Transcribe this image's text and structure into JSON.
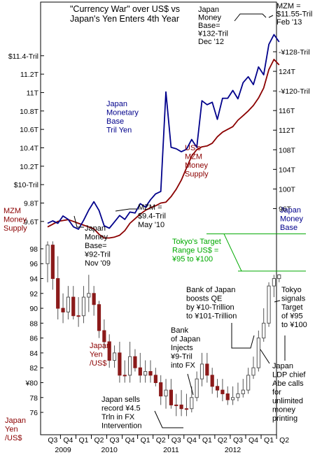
{
  "chart_data": [
    {
      "type": "line",
      "title": "\"Currency War\" over US$ vs Japan's Yen Enters 4th Year",
      "title_lines": [
        "\"Currency War\" over US$ vs",
        "Japan's Yen Enters 4th Year"
      ],
      "x_unit": "month index, 0 = Jul 2009 (Q3 2009) ... 45 = Apr 2013",
      "left_axis": {
        "label": "MZM Money Supply",
        "label_lines": [
          "MZM",
          "Money",
          "Supply"
        ],
        "unit": "US$ Trillion",
        "ylim": [
          9.5,
          11.55
        ],
        "ticks": [
          {
            "v": 11.4,
            "t": "$11.4-Tril"
          },
          {
            "v": 11.2,
            "t": "11.2T"
          },
          {
            "v": 11.0,
            "t": "11T"
          },
          {
            "v": 10.8,
            "t": "10.8T"
          },
          {
            "v": 10.6,
            "t": "10.6T"
          },
          {
            "v": 10.4,
            "t": "10.4T"
          },
          {
            "v": 10.2,
            "t": "10.2T"
          },
          {
            "v": 10.0,
            "t": "$10-Tril"
          },
          {
            "v": 9.8,
            "t": "9.8T"
          },
          {
            "v": 9.6,
            "t": "9.6T"
          }
        ]
      },
      "right_axis": {
        "label": "Japan Money Base",
        "label_lines": [
          "Japan",
          "Money",
          "Base"
        ],
        "unit": "Yen Trillion",
        "ylim": [
          91.5,
          130.0
        ],
        "ticks": [
          {
            "v": 128,
            "t": "-¥128-Tril"
          },
          {
            "v": 124,
            "t": "124T"
          },
          {
            "v": 120,
            "t": "-¥120-Tril"
          },
          {
            "v": 116,
            "t": "116T"
          },
          {
            "v": 112,
            "t": "112T"
          },
          {
            "v": 108,
            "t": "108T"
          },
          {
            "v": 104,
            "t": "104T"
          },
          {
            "v": 100,
            "t": "100T"
          },
          {
            "v": 96,
            "t": "96T"
          }
        ]
      },
      "series": [
        {
          "name": "US's MZM Money Supply",
          "axis": "left",
          "color": "#8b0000",
          "x": [
            0,
            1,
            2,
            3,
            4,
            5,
            6,
            7,
            8,
            9,
            10,
            11,
            12,
            13,
            14,
            15,
            16,
            17,
            18,
            19,
            20,
            21,
            22,
            23,
            24,
            25,
            26,
            27,
            28,
            29,
            30,
            31,
            32,
            33,
            34,
            35,
            36,
            37,
            38,
            39,
            40,
            41,
            42,
            43,
            44,
            45
          ],
          "values": [
            9.54,
            9.57,
            9.6,
            9.61,
            9.62,
            9.6,
            9.58,
            9.56,
            9.54,
            9.52,
            9.46,
            9.42,
            9.42,
            9.43,
            9.45,
            9.5,
            9.58,
            9.63,
            9.68,
            9.72,
            9.75,
            9.77,
            9.8,
            9.81,
            9.87,
            9.95,
            10.05,
            10.18,
            10.31,
            10.38,
            10.41,
            10.42,
            10.45,
            10.52,
            10.57,
            10.6,
            10.63,
            10.7,
            10.75,
            10.8,
            10.86,
            10.94,
            11.05,
            11.25,
            11.36,
            11.3
          ]
        },
        {
          "name": "Japan Monetary Base Tril Yen",
          "axis": "right",
          "color": "#00008b",
          "x": [
            0,
            1,
            2,
            3,
            4,
            5,
            6,
            7,
            8,
            9,
            10,
            11,
            12,
            13,
            14,
            15,
            16,
            17,
            18,
            19,
            20,
            21,
            22,
            23,
            24,
            25,
            26,
            27,
            28,
            29,
            30,
            31,
            32,
            33,
            34,
            35,
            36,
            37,
            38,
            39,
            40,
            41,
            42,
            43,
            44,
            45
          ],
          "values": [
            93.0,
            93.5,
            93.0,
            94.5,
            93.8,
            92.3,
            91.8,
            93.6,
            95.7,
            97.4,
            95.6,
            92.5,
            92.0,
            93.3,
            94.6,
            93.8,
            95.3,
            95.1,
            97.0,
            96.3,
            97.8,
            99.0,
            99.5,
            119.8,
            108.5,
            108.2,
            107.6,
            108.1,
            110.1,
            108.5,
            118.0,
            117.2,
            117.7,
            114.2,
            118.5,
            118.5,
            120.1,
            118.4,
            121.7,
            122.9,
            121.3,
            124.9,
            123.3,
            129.5,
            131.5,
            130.0
          ]
        }
      ],
      "annotations": [
        {
          "text": "Japan Monetary Base Tril Yen",
          "lines": [
            "Japan",
            "Monetary",
            "Base",
            "Tril Yen"
          ],
          "color": "#00008b"
        },
        {
          "text": "US's MZM Money Supply",
          "lines": [
            "US's",
            "MZM",
            "Money",
            "Supply"
          ],
          "color": "#8b0000"
        },
        {
          "text": "Japan Money Base= ¥132-Tril Dec '12",
          "lines": [
            "Japan",
            "Money",
            "Base=",
            "¥132-Tril",
            "Dec '12"
          ],
          "color": "#000000"
        },
        {
          "text": "MZM = $11.55-Tril Feb '13",
          "lines": [
            "MZM =",
            "$11.55-Tril",
            "Feb '13"
          ],
          "color": "#000000"
        },
        {
          "text": "MZM = $9.4-Tril May '10",
          "lines": [
            "MZM =",
            "$9.4-Tril",
            "May '10"
          ],
          "color": "#000000"
        },
        {
          "text": "Japan Money Base= ¥92-Tril Nov '09",
          "lines": [
            "Japan",
            "Money",
            "Base=",
            "¥92-Tril",
            "Nov '09"
          ],
          "color": "#000000"
        }
      ]
    },
    {
      "type": "candlestick",
      "title": "",
      "ylabel": "Japan Yen /US$",
      "ylabel_lines": [
        "Japan",
        "Yen",
        "/US$"
      ],
      "ylim": [
        74.5,
        99.5
      ],
      "yticks": [
        {
          "v": 98,
          "t": "98"
        },
        {
          "v": 96,
          "t": "96"
        },
        {
          "v": 94,
          "t": "94"
        },
        {
          "v": 92,
          "t": "92"
        },
        {
          "v": 90,
          "t": "90"
        },
        {
          "v": 88,
          "t": "88"
        },
        {
          "v": 86,
          "t": "86"
        },
        {
          "v": 84,
          "t": "84"
        },
        {
          "v": 82,
          "t": "82"
        },
        {
          "v": 80,
          "t": "¥80"
        },
        {
          "v": 78,
          "t": "78"
        },
        {
          "v": 76,
          "t": "76"
        }
      ],
      "color": "#8b1a1a",
      "x": [
        0,
        1,
        2,
        3,
        4,
        5,
        6,
        7,
        8,
        9,
        10,
        11,
        12,
        13,
        14,
        15,
        16,
        17,
        18,
        19,
        20,
        21,
        22,
        23,
        24,
        25,
        26,
        27,
        28,
        29,
        30,
        31,
        32,
        33,
        34,
        35,
        36,
        37,
        38,
        39,
        40,
        41,
        42,
        43,
        44,
        45
      ],
      "open": [
        96.0,
        98.5,
        94.0,
        90.0,
        89.5,
        91.5,
        89.0,
        89.0,
        91.5,
        92.0,
        90.5,
        87.0,
        85.5,
        83.0,
        84.0,
        81.0,
        81.0,
        83.5,
        82.0,
        81.0,
        81.5,
        81.0,
        80.0,
        78.2,
        79.0,
        77.0,
        77.0,
        76.5,
        76.5,
        78.0,
        80.5,
        82.5,
        81.0,
        79.5,
        79.0,
        78.5,
        77.7,
        78.0,
        78.5,
        79.0,
        81.0,
        82.0,
        86.0,
        88.0,
        93.0,
        94.0
      ],
      "close": [
        98.5,
        94.0,
        90.0,
        89.5,
        91.5,
        89.0,
        89.0,
        91.5,
        92.0,
        90.5,
        87.0,
        85.5,
        83.0,
        84.0,
        81.0,
        81.0,
        83.5,
        82.0,
        81.0,
        81.5,
        81.0,
        80.0,
        78.2,
        79.0,
        77.0,
        77.0,
        76.5,
        76.5,
        78.0,
        80.5,
        82.5,
        81.0,
        79.5,
        79.0,
        78.5,
        77.7,
        78.0,
        78.5,
        79.0,
        81.0,
        82.0,
        86.0,
        88.0,
        93.0,
        94.0,
        94.5
      ],
      "high": [
        99.0,
        99.0,
        97.0,
        92.0,
        93.0,
        93.0,
        91.5,
        93.0,
        94.5,
        93.0,
        91.0,
        88.5,
        86.5,
        85.0,
        85.5,
        83.0,
        85.5,
        84.5,
        84.0,
        83.0,
        83.0,
        82.0,
        81.0,
        80.5,
        80.5,
        78.5,
        79.0,
        78.5,
        79.5,
        81.5,
        84.0,
        84.0,
        82.0,
        80.5,
        80.5,
        79.5,
        79.5,
        80.0,
        80.5,
        82.0,
        83.5,
        87.0,
        90.0,
        93.5,
        94.5,
        94.6
      ],
      "low": [
        93.5,
        92.5,
        88.5,
        88.0,
        88.5,
        88.5,
        87.5,
        88.0,
        89.5,
        89.0,
        86.0,
        84.5,
        82.0,
        82.0,
        80.0,
        80.0,
        80.0,
        81.5,
        80.0,
        80.0,
        80.0,
        79.5,
        77.0,
        76.5,
        76.5,
        75.5,
        75.5,
        75.5,
        76.0,
        77.5,
        79.5,
        80.0,
        78.5,
        78.0,
        77.5,
        77.0,
        77.0,
        77.5,
        78.0,
        78.5,
        80.5,
        81.5,
        85.5,
        87.5,
        91.5,
        93.5
      ],
      "target_range": {
        "low": 95,
        "high": 100,
        "label": "Tokyo's Target Range US$ = ¥95 to ¥100",
        "label_lines": [
          "Tokyo's Target",
          "Range US$ =",
          "¥95 to ¥100"
        ],
        "color": "#00aa00"
      },
      "annotations": [
        {
          "text": "Bank of Japan boosts QE by ¥10-Trillion to ¥101-Trillion",
          "lines": [
            "Bank of Japan",
            "boosts QE",
            "by ¥10-Trillion",
            "to ¥101-Trillion"
          ]
        },
        {
          "text": "Tokyo signals Target of ¥95 to ¥100",
          "lines": [
            "Tokyo",
            "signals",
            "Target",
            "of ¥95",
            "to ¥100"
          ]
        },
        {
          "text": "Bank of Japan Injects ¥9-Tril into FX",
          "lines": [
            "Bank",
            "of Japan",
            "Injects",
            "¥9-Tril",
            "into FX"
          ]
        },
        {
          "text": "Japan LDP chief Abe calls for unlimited money printing",
          "lines": [
            "Japan",
            "LDP chief",
            "Abe calls",
            "for",
            "unlimited",
            "money",
            "printing"
          ]
        },
        {
          "text": "Japan sells record ¥4.5 Trln in FX Intervention",
          "lines": [
            "Japan sells",
            "record ¥4.5",
            "Trln in FX",
            "Intervention"
          ]
        },
        {
          "text": "Japan Yen /US$",
          "lines": [
            "Japan",
            "Yen",
            "/US$"
          ],
          "color": "#8b0000"
        }
      ]
    }
  ],
  "x_axis": {
    "quarters": [
      "Q3",
      "Q4",
      "Q1",
      "Q2",
      "Q3",
      "Q4",
      "Q1",
      "Q2",
      "Q3",
      "Q4",
      "Q1",
      "Q2",
      "Q3",
      "Q4",
      "Q1",
      "Q2"
    ],
    "years": [
      "2009",
      "2010",
      "2011",
      "2012"
    ]
  }
}
